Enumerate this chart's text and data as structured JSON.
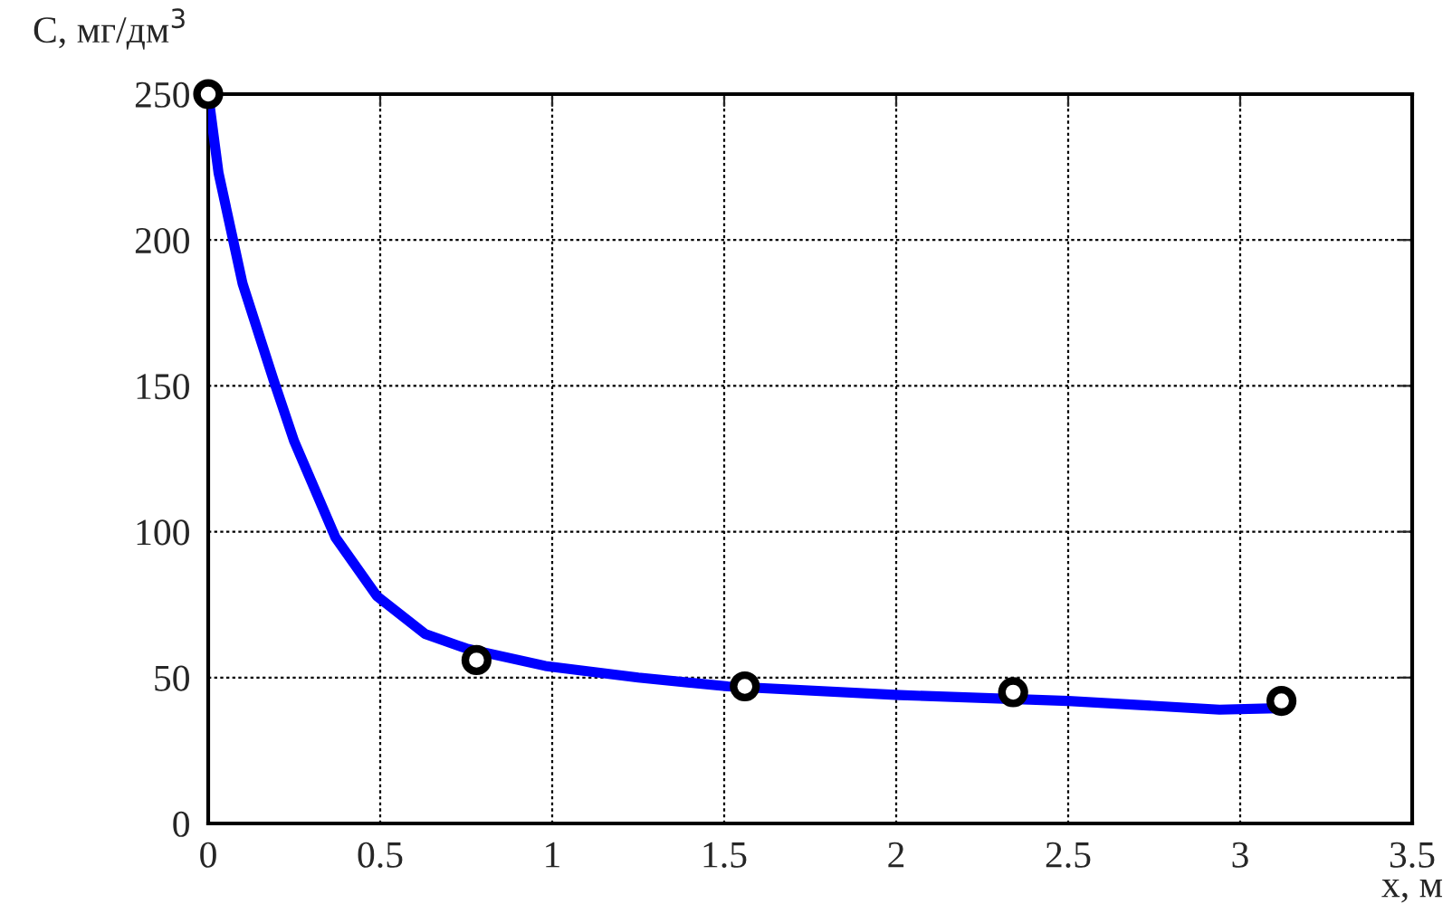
{
  "chart_data": {
    "type": "line",
    "xlabel": "x, м",
    "ylabel": "C, мг/дм$^{3}$",
    "series": [
      {
        "color": "#0000ff",
        "marker": "none",
        "x": [
          0,
          0.03,
          0.1,
          0.19,
          0.25,
          0.37,
          0.49,
          0.63,
          0.75,
          0.98,
          1.25,
          1.51,
          2.01,
          2.5,
          2.94,
          3.11
        ],
        "values": [
          250,
          223,
          185,
          152,
          131,
          98,
          78,
          65,
          60,
          54,
          50,
          47,
          44,
          42,
          39,
          39.5
        ]
      },
      {
        "type": "scatter",
        "color": "#000000",
        "marker": "circle",
        "x": [
          0,
          0.78,
          1.56,
          2.34,
          3.12
        ],
        "values": [
          250,
          56,
          47,
          45,
          42
        ]
      }
    ],
    "xlim": [
      0,
      3.5
    ],
    "ylim": [
      0,
      250
    ],
    "xticks": [
      0,
      0.5,
      1,
      1.5,
      2,
      2.5,
      3,
      3.5
    ],
    "yticks": [
      0,
      50,
      100,
      150,
      200,
      250
    ],
    "grid": true
  }
}
